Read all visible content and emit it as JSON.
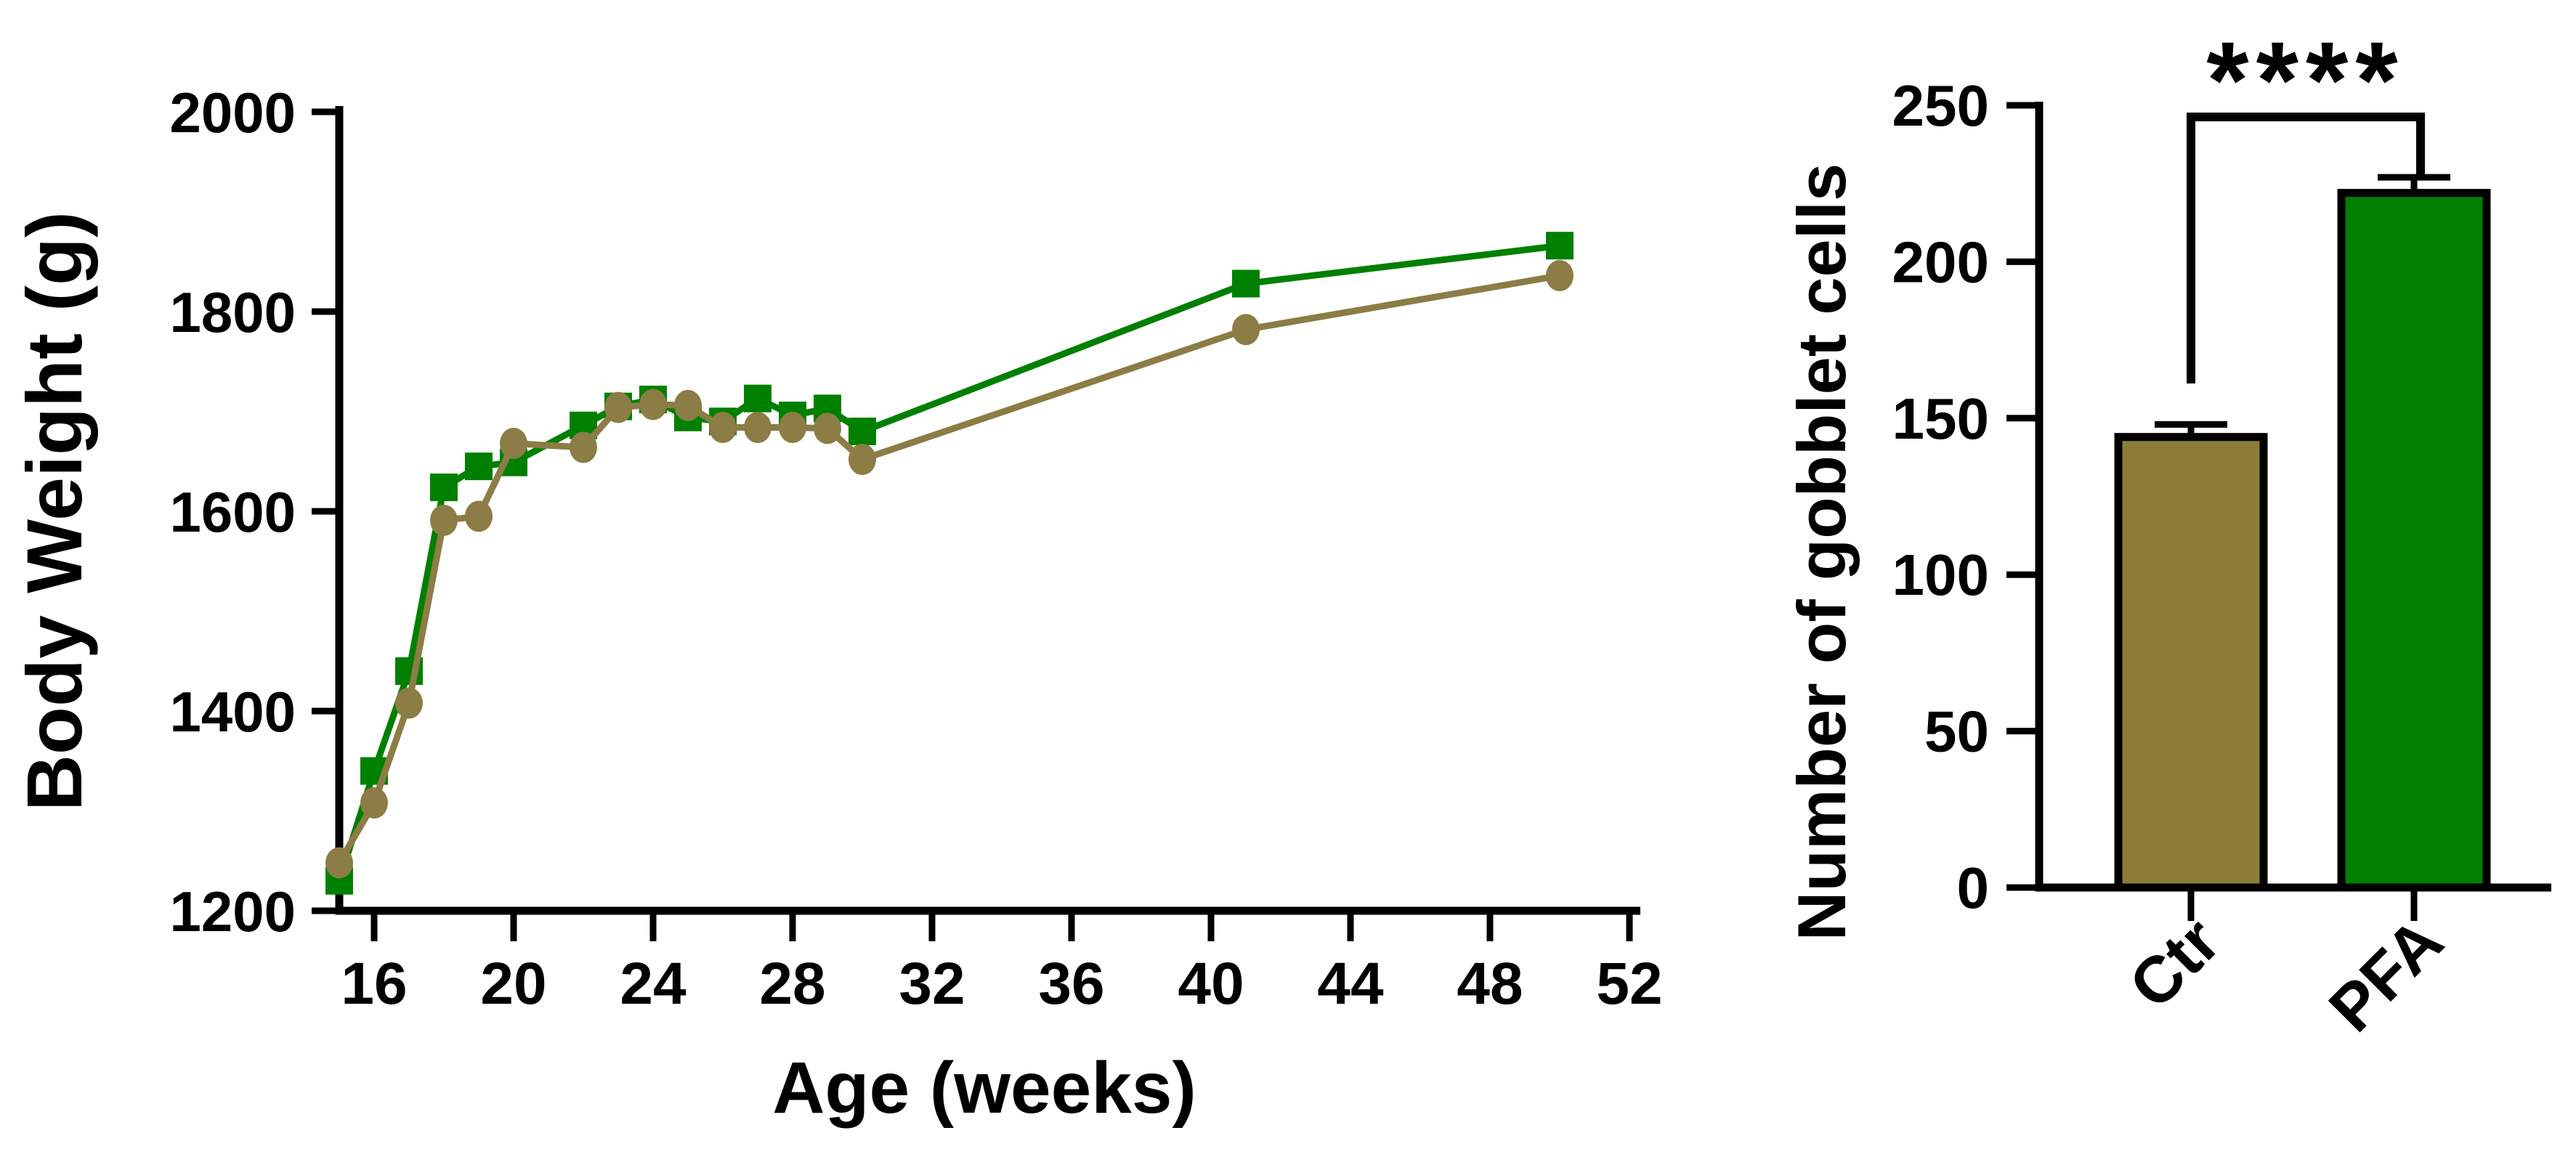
{
  "page": {
    "background": "#ffffff",
    "ink": "#000000"
  },
  "chart_data": [
    {
      "type": "line",
      "title": "",
      "xlabel": "Age (weeks)",
      "ylabel": "Body  Weight (g)",
      "x_ticks": [
        16,
        20,
        24,
        28,
        32,
        36,
        40,
        44,
        48,
        52
      ],
      "y_ticks": [
        1200,
        1400,
        1600,
        1800,
        2000
      ],
      "xlim": [
        15,
        52.3
      ],
      "ylim": [
        1200,
        2000
      ],
      "grid": false,
      "legend": "none",
      "x": [
        15,
        16,
        17,
        18,
        19,
        20,
        22,
        23,
        24,
        25,
        26,
        27,
        28,
        29,
        30,
        41,
        50
      ],
      "series": [
        {
          "name": "PFA",
          "marker": "square",
          "color": "#008000",
          "values": [
            1230,
            1340,
            1440,
            1624,
            1645,
            1649,
            1686,
            1705,
            1712,
            1694,
            1690,
            1713,
            1696,
            1703,
            1680,
            1828,
            1866
          ]
        },
        {
          "name": "Ctr",
          "marker": "circle",
          "color": "#8C7C45",
          "values": [
            1248,
            1308,
            1408,
            1591,
            1595,
            1668,
            1664,
            1704,
            1707,
            1706,
            1684,
            1684,
            1684,
            1683,
            1652,
            1782,
            1836
          ]
        }
      ]
    },
    {
      "type": "bar",
      "title": "",
      "xlabel": "",
      "ylabel": "Number of gobblet cells",
      "categories": [
        "Ctr",
        "PFA"
      ],
      "values": [
        144,
        222
      ],
      "errors_plus": [
        4,
        5
      ],
      "bar_colors": [
        "#8B7D35",
        "#008000"
      ],
      "bar_outline": "#000000",
      "y_ticks": [
        0,
        50,
        100,
        150,
        200,
        250
      ],
      "ylim": [
        0,
        250
      ],
      "grid": false,
      "significance": {
        "label": "****",
        "between": [
          "Ctr",
          "PFA"
        ]
      }
    }
  ]
}
